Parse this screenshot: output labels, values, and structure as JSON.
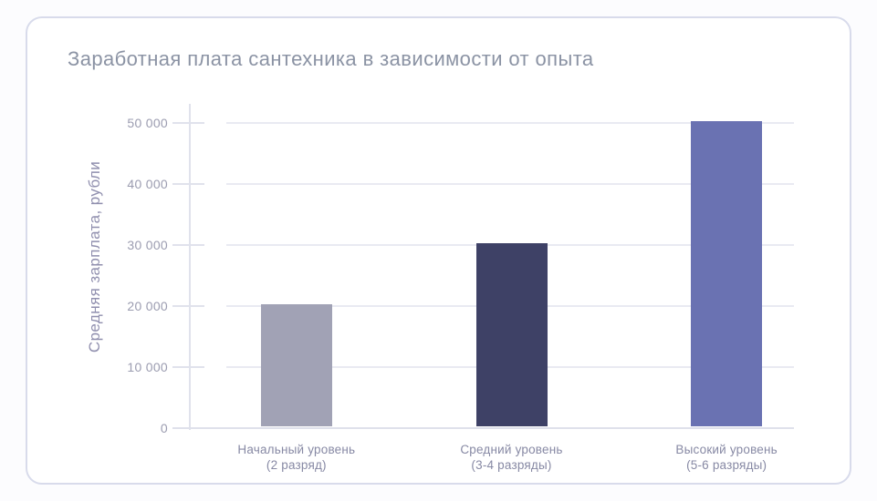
{
  "page": {
    "background": "#fcfcfe"
  },
  "card": {
    "background": "#ffffff",
    "border_color": "#d8dbeb"
  },
  "chart_data": {
    "type": "bar",
    "title": "Заработная плата сантехника в зависимости от опыта",
    "ylabel": "Средняя зарплата, рубли",
    "xlabel": "",
    "categories": [
      "Начальный уровень\n(2 разряд)",
      "Средний уровень\n(3-4 разряды)",
      "Высокий уровень\n(5-6 разряды)"
    ],
    "values": [
      20000,
      30000,
      50000
    ],
    "bar_colors": [
      "#a1a2b5",
      "#3e4166",
      "#6a72b2"
    ],
    "ylim": [
      0,
      50000
    ],
    "yticks": [
      0,
      10000,
      20000,
      30000,
      40000,
      50000
    ],
    "ytick_labels": [
      "0",
      "10 000",
      "20 000",
      "30 000",
      "40 000",
      "50 000"
    ],
    "grid": "horizontal",
    "legend": false,
    "colors": {
      "title_text": "#8b93a4",
      "axis_text": "#9b9cb0",
      "x_label_text": "#8789a4",
      "y_title_text": "#908fae",
      "gridline": "#e9eaf2",
      "axis_line": "#e0e2ec"
    }
  }
}
